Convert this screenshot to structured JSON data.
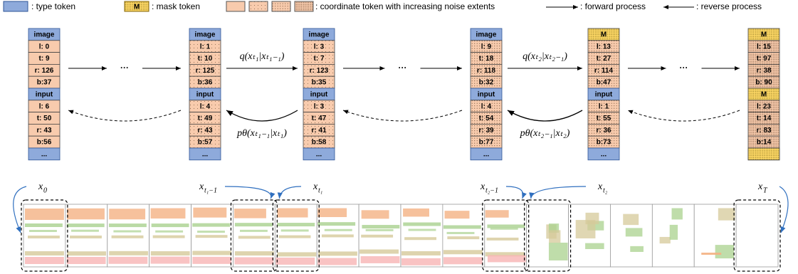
{
  "legend": {
    "type_token": ": type token",
    "mask_icon": "M",
    "mask_token": ": mask token",
    "coordinate_token": ": coordinate token with increasing noise extents",
    "forward": ": forward process",
    "reverse": ": reverse process"
  },
  "ellipsis": "···",
  "columns": [
    {
      "label": {
        "base": "x",
        "sub": "0"
      },
      "tokens": [
        "image",
        "l: 0",
        "t: 9",
        "r: 126",
        "b:37",
        "input",
        "l: 6",
        "t: 50",
        "r: 43",
        "b:56",
        "..."
      ]
    },
    {
      "label": {
        "base": "x",
        "sub": "t₁−1"
      },
      "tokens": [
        "image",
        "l: 1",
        "t: 10",
        "r: 125",
        "b:36",
        "input",
        "l: 4",
        "t: 49",
        "r: 43",
        "b:57",
        "..."
      ]
    },
    {
      "label": {
        "base": "x",
        "sub": "t₁"
      },
      "tokens": [
        "image",
        "l: 3",
        "t: 7",
        "r: 123",
        "b:35",
        "input",
        "l: 3",
        "t: 47",
        "r: 41",
        "b:58",
        "..."
      ]
    },
    {
      "label": {
        "base": "x",
        "sub": "t₂−1"
      },
      "tokens": [
        "image",
        "l: 9",
        "t: 18",
        "r: 118",
        "b:32",
        "input",
        "l: 4",
        "t: 54",
        "r: 39",
        "b:77",
        "..."
      ]
    },
    {
      "label": {
        "base": "x",
        "sub": "t₂"
      },
      "tokens": [
        "M",
        "l: 13",
        "t: 27",
        "r: 114",
        "b:47",
        "input",
        "l: 1",
        "t: 55",
        "r: 36",
        "b:73",
        "..."
      ]
    },
    {
      "label": {
        "base": "x",
        "sub": "T"
      },
      "tokens": [
        "M",
        "l: 15",
        "t: 97",
        "r: 38",
        "b: 90",
        "M",
        "l: 23",
        "t: 14",
        "r: 83",
        "b:14"
      ]
    }
  ],
  "transitions": [
    {
      "forward": "q(xₜ₁|xₜ₁₋₁)",
      "reverse": "pθ(xₜ₁₋₁|xₜ₁)"
    },
    {
      "forward": "q(xₜ₂|xₜ₂₋₁)",
      "reverse": "pθ(xₜ₂₋₁|xₜ₂)"
    }
  ]
}
